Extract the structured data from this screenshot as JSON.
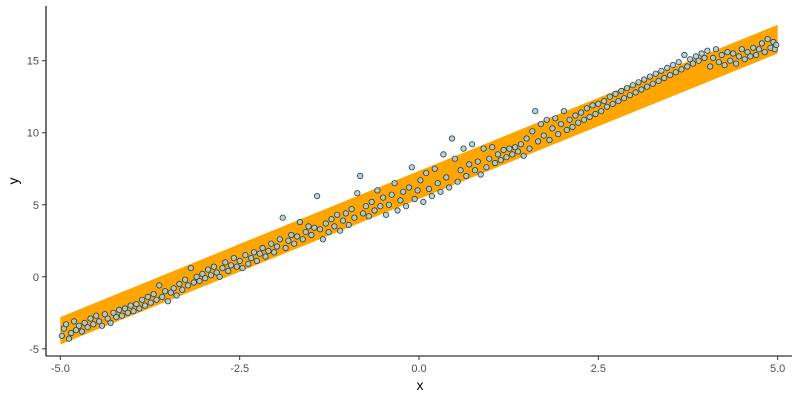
{
  "chart_data": {
    "type": "scatter",
    "title": "",
    "xlabel": "x",
    "ylabel": "y",
    "xlim": [
      -5.2,
      5.2
    ],
    "ylim": [
      -5.5,
      18.8
    ],
    "x_ticks": [
      -5.0,
      -2.5,
      0.0,
      2.5,
      5.0
    ],
    "x_tick_labels": [
      "-5.0",
      "-2.5",
      "0.0",
      "2.5",
      "5.0"
    ],
    "y_ticks": [
      -5,
      0,
      5,
      10,
      15
    ],
    "y_tick_labels": [
      "-5",
      "0",
      "5",
      "10",
      "15"
    ],
    "grid": false,
    "band": {
      "color": "#ffa500",
      "x": [
        -5.0,
        5.0
      ],
      "lower": [
        -4.7,
        15.5
      ],
      "upper": [
        -2.8,
        17.5
      ]
    },
    "series": [
      {
        "point_color": "#a6cee3",
        "point_edge_color": "#2b3a3f",
        "points": [
          [
            -4.98,
            -4.1
          ],
          [
            -4.95,
            -3.6
          ],
          [
            -4.92,
            -3.3
          ],
          [
            -4.88,
            -4.3
          ],
          [
            -4.85,
            -3.9
          ],
          [
            -4.81,
            -3.1
          ],
          [
            -4.78,
            -3.7
          ],
          [
            -4.74,
            -3.4
          ],
          [
            -4.7,
            -3.8
          ],
          [
            -4.66,
            -3.2
          ],
          [
            -4.62,
            -3.5
          ],
          [
            -4.58,
            -2.9
          ],
          [
            -4.54,
            -3.3
          ],
          [
            -4.5,
            -2.7
          ],
          [
            -4.46,
            -3.1
          ],
          [
            -4.42,
            -3.4
          ],
          [
            -4.38,
            -2.6
          ],
          [
            -4.34,
            -2.9
          ],
          [
            -4.3,
            -3.2
          ],
          [
            -4.26,
            -2.5
          ],
          [
            -4.22,
            -2.8
          ],
          [
            -4.18,
            -2.3
          ],
          [
            -4.14,
            -2.7
          ],
          [
            -4.1,
            -2.2
          ],
          [
            -4.06,
            -2.5
          ],
          [
            -4.02,
            -2.0
          ],
          [
            -3.98,
            -2.4
          ],
          [
            -3.94,
            -1.9
          ],
          [
            -3.9,
            -2.2
          ],
          [
            -3.86,
            -1.6
          ],
          [
            -3.82,
            -2.0
          ],
          [
            -3.78,
            -1.4
          ],
          [
            -3.74,
            -1.8
          ],
          [
            -3.7,
            -1.2
          ],
          [
            -3.66,
            -1.6
          ],
          [
            -3.62,
            -0.6
          ],
          [
            -3.58,
            -1.4
          ],
          [
            -3.54,
            -1.0
          ],
          [
            -3.5,
            -1.7
          ],
          [
            -3.46,
            -1.1
          ],
          [
            -3.42,
            -0.8
          ],
          [
            -3.38,
            -1.3
          ],
          [
            -3.34,
            -0.5
          ],
          [
            -3.3,
            -0.9
          ],
          [
            -3.26,
            -0.2
          ],
          [
            -3.22,
            -0.6
          ],
          [
            -3.18,
            0.6
          ],
          [
            -3.14,
            -0.4
          ],
          [
            -3.1,
            0.0
          ],
          [
            -3.06,
            -0.3
          ],
          [
            -3.02,
            0.2
          ],
          [
            -2.98,
            -0.1
          ],
          [
            -2.94,
            0.5
          ],
          [
            -2.9,
            0.1
          ],
          [
            -2.86,
            0.7
          ],
          [
            -2.82,
            0.3
          ],
          [
            -2.78,
            0.0
          ],
          [
            -2.74,
            0.6
          ],
          [
            -2.7,
            1.0
          ],
          [
            -2.66,
            0.4
          ],
          [
            -2.62,
            0.8
          ],
          [
            -2.58,
            1.3
          ],
          [
            -2.54,
            0.7
          ],
          [
            -2.5,
            1.1
          ],
          [
            -2.46,
            0.6
          ],
          [
            -2.42,
            1.5
          ],
          [
            -2.38,
            0.9
          ],
          [
            -2.34,
            1.3
          ],
          [
            -2.3,
            1.7
          ],
          [
            -2.26,
            1.1
          ],
          [
            -2.22,
            1.6
          ],
          [
            -2.18,
            2.0
          ],
          [
            -2.14,
            1.4
          ],
          [
            -2.1,
            1.8
          ],
          [
            -2.06,
            2.3
          ],
          [
            -2.02,
            1.7
          ],
          [
            -1.98,
            2.1
          ],
          [
            -1.94,
            2.6
          ],
          [
            -1.9,
            4.1
          ],
          [
            -1.86,
            2.0
          ],
          [
            -1.82,
            2.5
          ],
          [
            -1.78,
            2.9
          ],
          [
            -1.74,
            2.3
          ],
          [
            -1.7,
            2.8
          ],
          [
            -1.66,
            3.8
          ],
          [
            -1.62,
            2.6
          ],
          [
            -1.58,
            3.1
          ],
          [
            -1.54,
            3.5
          ],
          [
            -1.5,
            2.9
          ],
          [
            -1.46,
            3.4
          ],
          [
            -1.42,
            5.6
          ],
          [
            -1.38,
            3.3
          ],
          [
            -1.34,
            2.6
          ],
          [
            -1.3,
            3.7
          ],
          [
            -1.26,
            3.1
          ],
          [
            -1.22,
            4.0
          ],
          [
            -1.18,
            3.5
          ],
          [
            -1.14,
            4.3
          ],
          [
            -1.1,
            3.2
          ],
          [
            -1.06,
            3.9
          ],
          [
            -1.02,
            4.4
          ],
          [
            -0.98,
            3.6
          ],
          [
            -0.94,
            4.7
          ],
          [
            -0.9,
            4.1
          ],
          [
            -0.86,
            5.8
          ],
          [
            -0.82,
            7.0
          ],
          [
            -0.78,
            4.4
          ],
          [
            -0.74,
            4.9
          ],
          [
            -0.7,
            4.2
          ],
          [
            -0.66,
            5.2
          ],
          [
            -0.62,
            4.6
          ],
          [
            -0.58,
            6.0
          ],
          [
            -0.54,
            4.9
          ],
          [
            -0.5,
            5.5
          ],
          [
            -0.46,
            4.3
          ],
          [
            -0.42,
            5.0
          ],
          [
            -0.38,
            5.7
          ],
          [
            -0.34,
            6.5
          ],
          [
            -0.3,
            4.6
          ],
          [
            -0.26,
            5.3
          ],
          [
            -0.22,
            5.9
          ],
          [
            -0.18,
            4.9
          ],
          [
            -0.14,
            6.2
          ],
          [
            -0.1,
            7.6
          ],
          [
            -0.06,
            5.4
          ],
          [
            -0.02,
            6.0
          ],
          [
            0.02,
            6.7
          ],
          [
            0.06,
            5.2
          ],
          [
            0.1,
            7.2
          ],
          [
            0.14,
            6.1
          ],
          [
            0.18,
            5.6
          ],
          [
            0.22,
            7.5
          ],
          [
            0.26,
            6.5
          ],
          [
            0.3,
            5.9
          ],
          [
            0.34,
            8.5
          ],
          [
            0.38,
            6.9
          ],
          [
            0.42,
            6.2
          ],
          [
            0.46,
            9.6
          ],
          [
            0.5,
            8.2
          ],
          [
            0.54,
            6.6
          ],
          [
            0.58,
            7.4
          ],
          [
            0.62,
            8.9
          ],
          [
            0.66,
            7.0
          ],
          [
            0.7,
            7.8
          ],
          [
            0.74,
            9.2
          ],
          [
            0.78,
            7.4
          ],
          [
            0.82,
            8.0
          ],
          [
            0.86,
            7.1
          ],
          [
            0.9,
            8.9
          ],
          [
            0.94,
            7.6
          ],
          [
            0.98,
            8.2
          ],
          [
            1.02,
            9.0
          ],
          [
            1.06,
            7.9
          ],
          [
            1.1,
            8.5
          ],
          [
            1.14,
            8.1
          ],
          [
            1.18,
            8.8
          ],
          [
            1.22,
            8.3
          ],
          [
            1.26,
            8.9
          ],
          [
            1.3,
            8.5
          ],
          [
            1.34,
            9.0
          ],
          [
            1.38,
            8.7
          ],
          [
            1.42,
            9.2
          ],
          [
            1.46,
            8.4
          ],
          [
            1.5,
            9.6
          ],
          [
            1.54,
            8.9
          ],
          [
            1.58,
            10.1
          ],
          [
            1.62,
            11.5
          ],
          [
            1.66,
            9.4
          ],
          [
            1.7,
            10.6
          ],
          [
            1.74,
            9.8
          ],
          [
            1.78,
            10.9
          ],
          [
            1.82,
            9.5
          ],
          [
            1.86,
            10.3
          ],
          [
            1.9,
            11.0
          ],
          [
            1.94,
            9.9
          ],
          [
            1.98,
            10.6
          ],
          [
            2.02,
            11.5
          ],
          [
            2.06,
            10.2
          ],
          [
            2.1,
            10.9
          ],
          [
            2.14,
            10.4
          ],
          [
            2.18,
            11.2
          ],
          [
            2.22,
            10.7
          ],
          [
            2.26,
            11.4
          ],
          [
            2.3,
            10.9
          ],
          [
            2.34,
            11.7
          ],
          [
            2.38,
            11.1
          ],
          [
            2.42,
            11.9
          ],
          [
            2.46,
            11.3
          ],
          [
            2.5,
            12.0
          ],
          [
            2.54,
            11.5
          ],
          [
            2.58,
            12.2
          ],
          [
            2.62,
            11.8
          ],
          [
            2.66,
            12.5
          ],
          [
            2.7,
            12.0
          ],
          [
            2.74,
            12.7
          ],
          [
            2.78,
            12.2
          ],
          [
            2.82,
            12.9
          ],
          [
            2.86,
            12.4
          ],
          [
            2.9,
            13.1
          ],
          [
            2.94,
            12.6
          ],
          [
            2.98,
            13.3
          ],
          [
            3.02,
            12.8
          ],
          [
            3.06,
            13.5
          ],
          [
            3.1,
            13.0
          ],
          [
            3.14,
            13.7
          ],
          [
            3.18,
            13.2
          ],
          [
            3.22,
            13.9
          ],
          [
            3.26,
            13.4
          ],
          [
            3.3,
            14.1
          ],
          [
            3.34,
            13.6
          ],
          [
            3.38,
            14.3
          ],
          [
            3.42,
            13.8
          ],
          [
            3.46,
            14.5
          ],
          [
            3.5,
            14.0
          ],
          [
            3.54,
            14.7
          ],
          [
            3.58,
            14.2
          ],
          [
            3.62,
            14.9
          ],
          [
            3.66,
            14.4
          ],
          [
            3.7,
            15.4
          ],
          [
            3.74,
            14.6
          ],
          [
            3.78,
            15.1
          ],
          [
            3.82,
            14.8
          ],
          [
            3.86,
            15.3
          ],
          [
            3.9,
            15.0
          ],
          [
            3.94,
            15.5
          ],
          [
            3.98,
            15.2
          ],
          [
            4.02,
            15.7
          ],
          [
            4.06,
            14.6
          ],
          [
            4.1,
            15.2
          ],
          [
            4.14,
            15.8
          ],
          [
            4.18,
            14.9
          ],
          [
            4.22,
            15.4
          ],
          [
            4.26,
            14.7
          ],
          [
            4.3,
            15.6
          ],
          [
            4.34,
            15.0
          ],
          [
            4.38,
            15.5
          ],
          [
            4.42,
            14.8
          ],
          [
            4.46,
            15.3
          ],
          [
            4.5,
            15.8
          ],
          [
            4.54,
            15.1
          ],
          [
            4.58,
            15.6
          ],
          [
            4.62,
            15.3
          ],
          [
            4.66,
            15.9
          ],
          [
            4.7,
            15.4
          ],
          [
            4.74,
            15.8
          ],
          [
            4.78,
            16.2
          ],
          [
            4.82,
            15.6
          ],
          [
            4.86,
            16.5
          ],
          [
            4.9,
            15.9
          ],
          [
            4.94,
            16.3
          ],
          [
            4.96,
            15.8
          ],
          [
            4.98,
            16.1
          ]
        ]
      }
    ]
  }
}
